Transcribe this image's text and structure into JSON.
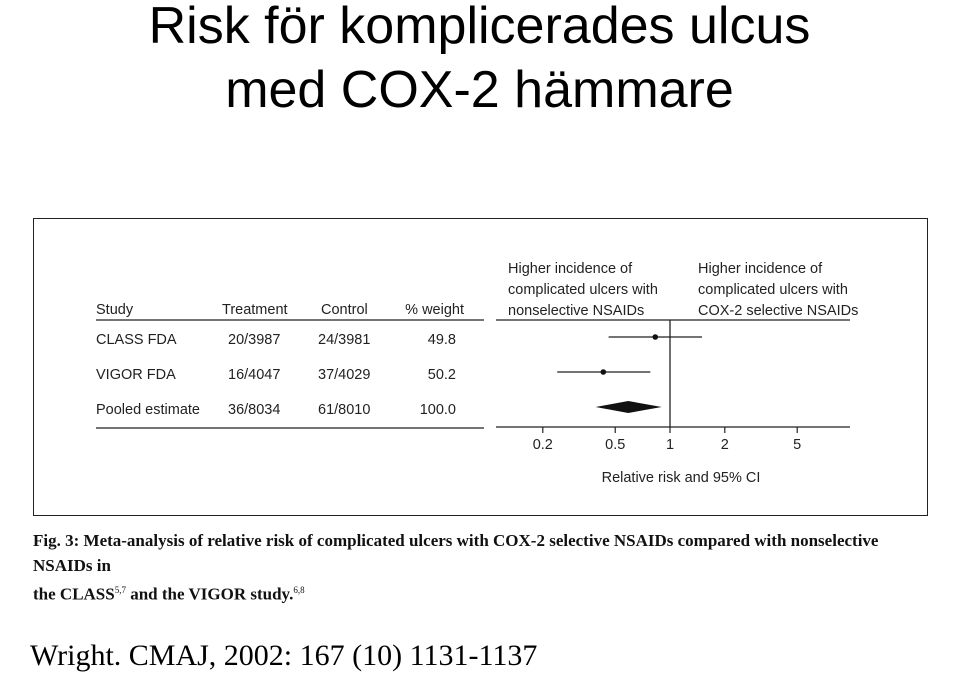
{
  "slide": {
    "title_line1": "Risk för komplicerades ulcus",
    "title_line2": "med COX-2 hämmare",
    "citation": "Wright. CMAJ, 2002: 167 (10) 1131-1137"
  },
  "figure": {
    "caption_line1": "Fig. 3: Meta-analysis of relative risk of complicated ulcers with COX-2 selective NSAIDs compared with nonselective NSAIDs in",
    "caption_line2_a": "the CLASS",
    "caption_ref1": "5,7",
    "caption_line2_b": " and the VIGOR study.",
    "caption_ref2": "6,8"
  },
  "chart_data": {
    "type": "forest",
    "columns": [
      "Study",
      "Treatment",
      "Control",
      "% weight"
    ],
    "rows": [
      {
        "study": "CLASS FDA",
        "treatment": "20/3987",
        "control": "24/3981",
        "weight": "49.8",
        "rr": 0.83,
        "ci": [
          0.46,
          1.5
        ],
        "pooled": false
      },
      {
        "study": "VIGOR FDA",
        "treatment": "16/4047",
        "control": "37/4029",
        "weight": "50.2",
        "rr": 0.43,
        "ci": [
          0.24,
          0.78
        ],
        "pooled": false
      },
      {
        "study": "Pooled estimate",
        "treatment": "36/8034",
        "control": "61/8010",
        "weight": "100.0",
        "rr": 0.59,
        "ci": [
          0.39,
          0.9
        ],
        "pooled": true
      }
    ],
    "favours_left": [
      "Higher incidence of",
      "complicated ulcers with",
      "nonselective NSAIDs"
    ],
    "favours_right": [
      "Higher incidence of",
      "complicated ulcers with",
      "COX-2 selective NSAIDs"
    ],
    "x_ticks": [
      0.2,
      0.5,
      1,
      2,
      5
    ],
    "x_tick_labels": [
      "0.2",
      "0.5",
      "1",
      "2",
      "5"
    ],
    "xlabel": "Relative risk and 95% CI",
    "x_scale": "log",
    "xlim": [
      0.13,
      9
    ],
    "reference_line": 1
  }
}
